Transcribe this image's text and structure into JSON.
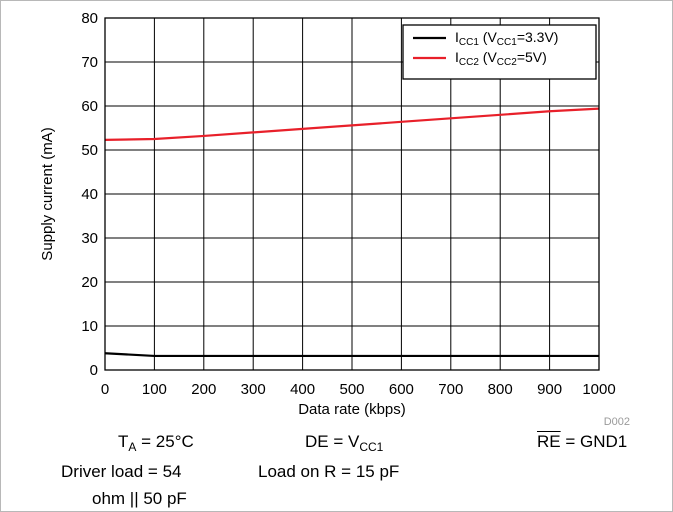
{
  "chart_data": {
    "type": "line",
    "title": "",
    "xlabel": "Data rate (kbps)",
    "ylabel": "Supply current (mA)",
    "xlim": [
      0,
      1000
    ],
    "ylim": [
      0,
      80
    ],
    "xticks": [
      0,
      100,
      200,
      300,
      400,
      500,
      600,
      700,
      800,
      900,
      1000
    ],
    "yticks": [
      0,
      10,
      20,
      30,
      40,
      50,
      60,
      70,
      80
    ],
    "grid": true,
    "legend_position": "top-right",
    "series": [
      {
        "name": "ICC1 (VCC1=3.3V)",
        "legend": {
          "main": "I",
          "sub1": "CC1",
          "mid": " (V",
          "sub2": "CC1",
          "tail": "=3.3V)"
        },
        "color": "#000000",
        "x": [
          0,
          100,
          200,
          300,
          400,
          500,
          600,
          700,
          800,
          900,
          1000
        ],
        "y": [
          3.8,
          3.2,
          3.2,
          3.2,
          3.2,
          3.2,
          3.2,
          3.2,
          3.2,
          3.2,
          3.2
        ]
      },
      {
        "name": "ICC2 (VCC2=5V)",
        "legend": {
          "main": "I",
          "sub1": "CC2",
          "mid": " (V",
          "sub2": "CC2",
          "tail": "=5V)"
        },
        "color": "#e8202a",
        "x": [
          0,
          100,
          200,
          300,
          400,
          500,
          600,
          700,
          800,
          900,
          1000
        ],
        "y": [
          52.3,
          52.5,
          53.2,
          54.0,
          54.8,
          55.6,
          56.4,
          57.2,
          58.0,
          58.8,
          59.4
        ]
      }
    ],
    "figure_id": "D002"
  },
  "conditions": {
    "ta": {
      "main": "T",
      "sub": "A",
      "tail": " = 25°C"
    },
    "de": {
      "main": "DE = V",
      "sub": "CC1"
    },
    "re": {
      "over": "RE",
      "tail": " = GND1"
    },
    "driver_load_line1": "Driver load = 54",
    "driver_load_line2": "ohm || 50 pF",
    "load_on_r": "Load on R = 15 pF"
  }
}
